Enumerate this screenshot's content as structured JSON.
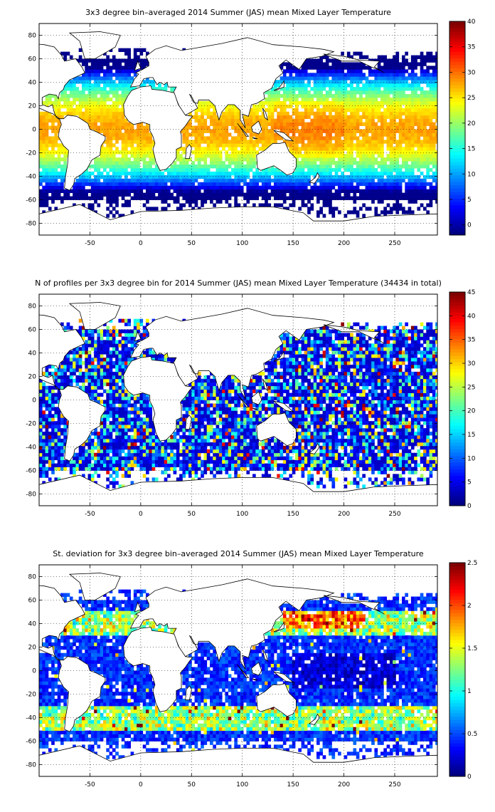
{
  "figure": {
    "panels": [
      {
        "title": "3x3 degree bin–averaged 2014 Summer (JAS) mean Mixed Layer Temperature",
        "field": "temperature",
        "colorbar": {
          "min": -2,
          "max": 40,
          "ticks": [
            "40",
            "35",
            "30",
            "25",
            "20",
            "15",
            "10",
            "5",
            "0"
          ],
          "tick_values": [
            40,
            35,
            30,
            25,
            20,
            15,
            10,
            5,
            0
          ]
        }
      },
      {
        "title": "N of profiles per 3x3 degree bin for 2014 Summer (JAS) mean Mixed Layer Temperature  (34434 in total)",
        "field": "count",
        "colorbar": {
          "min": 0,
          "max": 45,
          "ticks": [
            "45",
            "40",
            "35",
            "30",
            "25",
            "20",
            "15",
            "10",
            "5",
            "0"
          ],
          "tick_values": [
            45,
            40,
            35,
            30,
            25,
            20,
            15,
            10,
            5,
            0
          ]
        }
      },
      {
        "title": "St. deviation for 3x3 degree bin–averaged 2014 Summer (JAS) mean Mixed Layer Temperature",
        "field": "stdev",
        "colorbar": {
          "min": 0,
          "max": 2.5,
          "ticks": [
            "2.5",
            "2",
            "1.5",
            "1",
            "0.5",
            "0"
          ],
          "tick_values": [
            2.5,
            2,
            1.5,
            1,
            0.5,
            0
          ]
        }
      }
    ],
    "axes": {
      "x_range": [
        -100,
        292
      ],
      "y_range": [
        -90,
        90
      ],
      "x_ticks": [
        "-50",
        "0",
        "50",
        "100",
        "150",
        "200",
        "250"
      ],
      "x_tick_values": [
        -50,
        0,
        50,
        100,
        150,
        200,
        250
      ],
      "y_ticks": [
        "80",
        "60",
        "40",
        "20",
        "0",
        "-20",
        "-40",
        "-60",
        "-80"
      ],
      "y_tick_values": [
        80,
        60,
        40,
        20,
        0,
        -20,
        -40,
        -60,
        -80
      ],
      "grid": "dotted",
      "colormap": "jet",
      "bin_size_degrees": 3
    }
  }
}
